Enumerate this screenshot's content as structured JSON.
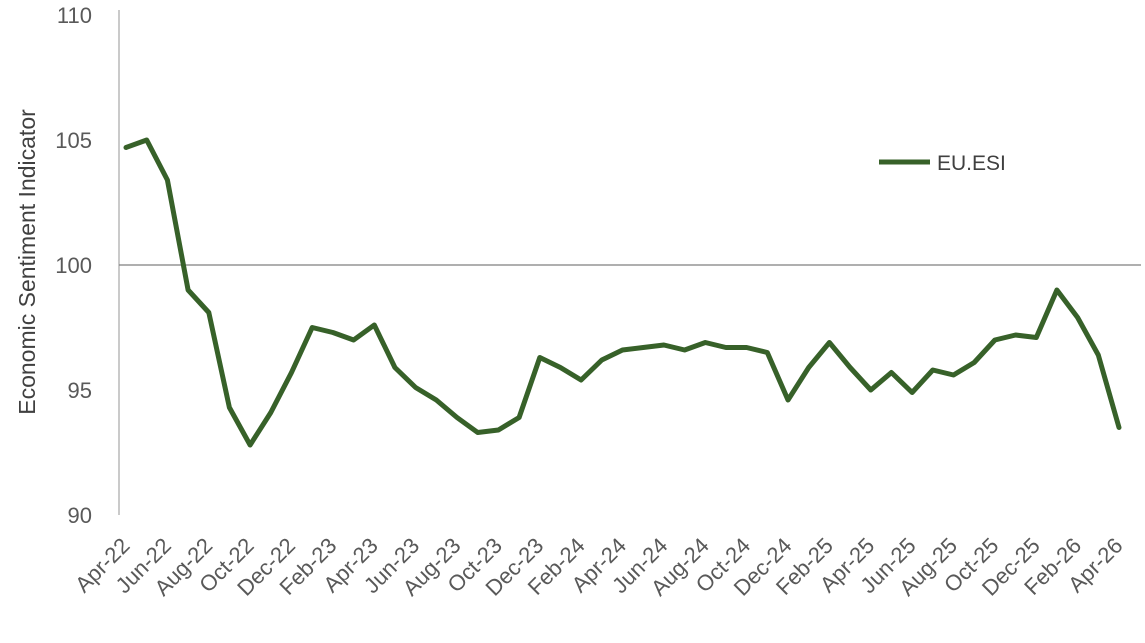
{
  "chart_data": {
    "type": "line",
    "title": "",
    "xlabel": "",
    "ylabel": "Economic Sentiment Indicator",
    "ylim": [
      90,
      110
    ],
    "yticks": [
      90,
      95,
      100,
      105,
      110
    ],
    "reference_line": 100,
    "legend_position": "upper-right",
    "grid": false,
    "x": [
      "Apr-22",
      "May-22",
      "Jun-22",
      "Jul-22",
      "Aug-22",
      "Sep-22",
      "Oct-22",
      "Nov-22",
      "Dec-22",
      "Jan-23",
      "Feb-23",
      "Mar-23",
      "Apr-23",
      "May-23",
      "Jun-23",
      "Jul-23",
      "Aug-23",
      "Sep-23",
      "Oct-23",
      "Nov-23",
      "Dec-23",
      "Jan-24",
      "Feb-24",
      "Mar-24",
      "Apr-24",
      "May-24",
      "Jun-24",
      "Jul-24",
      "Aug-24",
      "Sep-24",
      "Oct-24",
      "Nov-24",
      "Dec-24",
      "Jan-25",
      "Feb-25",
      "Mar-25",
      "Apr-25",
      "May-25",
      "Jun-25",
      "Jul-25",
      "Aug-25",
      "Sep-25",
      "Oct-25",
      "Nov-25",
      "Dec-25",
      "Jan-26",
      "Feb-26",
      "Mar-26",
      "Apr-26"
    ],
    "x_tick_labels": [
      "Apr-22",
      "Jun-22",
      "Aug-22",
      "Oct-22",
      "Dec-22",
      "Feb-23",
      "Apr-23",
      "Jun-23",
      "Aug-23",
      "Oct-23",
      "Dec-23",
      "Feb-24",
      "Apr-24",
      "Jun-24",
      "Aug-24",
      "Oct-24",
      "Dec-24",
      "Feb-25",
      "Apr-25",
      "Jun-25",
      "Aug-25",
      "Oct-25",
      "Dec-25",
      "Feb-26",
      "Apr-26"
    ],
    "series": [
      {
        "name": "EU.ESI",
        "color": "#376129",
        "values": [
          104.7,
          105.0,
          103.4,
          99.0,
          98.1,
          94.3,
          92.8,
          94.1,
          95.7,
          97.5,
          97.3,
          97.0,
          97.6,
          95.9,
          95.1,
          94.6,
          93.9,
          93.3,
          93.4,
          93.9,
          96.3,
          95.9,
          95.4,
          96.2,
          96.6,
          96.7,
          96.8,
          96.6,
          96.9,
          96.7,
          96.7,
          96.5,
          94.6,
          95.9,
          96.9,
          95.9,
          95.0,
          95.7,
          94.9,
          95.8,
          95.6,
          96.1,
          97.0,
          97.2,
          97.1,
          99.0,
          97.9,
          96.4,
          93.5
        ]
      }
    ]
  }
}
